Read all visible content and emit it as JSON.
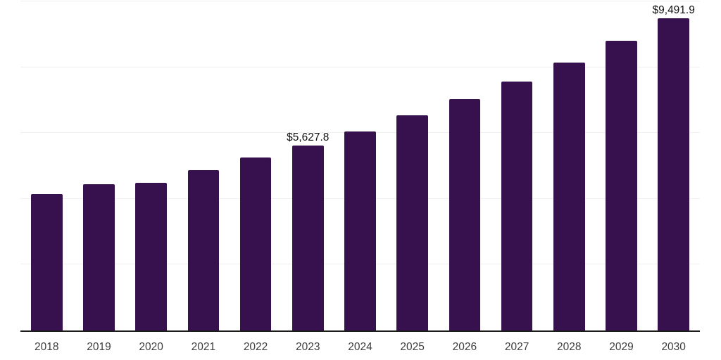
{
  "chart_data": {
    "type": "bar",
    "categories": [
      "2018",
      "2019",
      "2020",
      "2021",
      "2022",
      "2023",
      "2024",
      "2025",
      "2026",
      "2027",
      "2028",
      "2029",
      "2030"
    ],
    "values": [
      4140,
      4445,
      4490,
      4875,
      5255,
      5627.8,
      6050,
      6545,
      7030,
      7570,
      8150,
      8795,
      9491.9
    ],
    "value_labels": {
      "2023": "$5,627.8",
      "2030": "$9,491.9"
    },
    "ylim": [
      0,
      10000
    ],
    "gridline_values": [
      2000,
      4000,
      6000,
      8000,
      10000
    ],
    "grid": true,
    "legend": false,
    "colors": {
      "bar": "#36114d",
      "axis": "#1c1c1c",
      "gridline": "#f0f0f0",
      "tick_label": "#3d3d3d",
      "value_label": "#111111"
    }
  }
}
